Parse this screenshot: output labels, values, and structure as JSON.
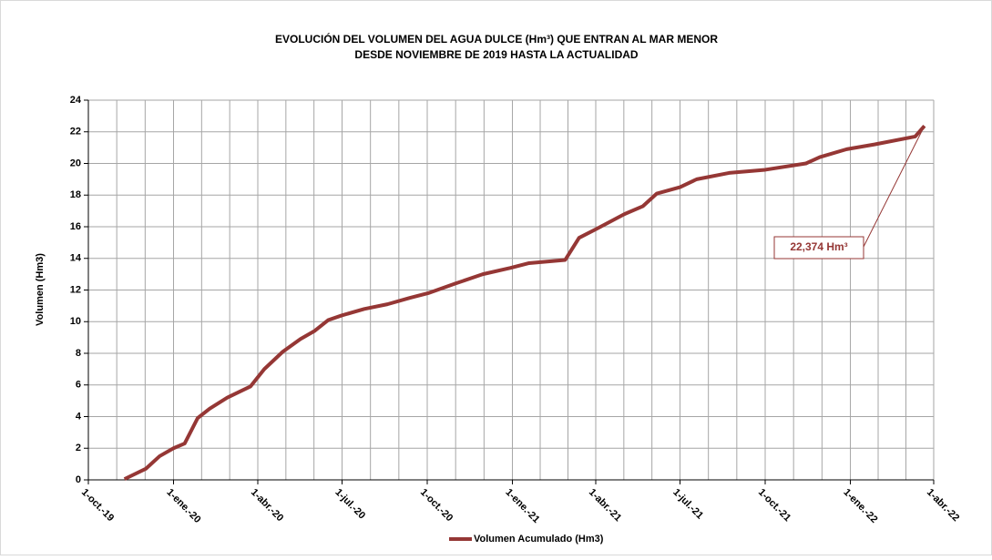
{
  "chart_data": {
    "type": "line",
    "title": [
      "EVOLUCIÓN DEL VOLUMEN DEL AGUA DULCE (Hm³) QUE ENTRAN AL MAR MENOR",
      "DESDE NOVIEMBRE DE 2019 HASTA LA ACTUALIDAD"
    ],
    "ylabel": "Volumen (Hm3)",
    "x": [
      "2019-11-09",
      "2019-12-02",
      "2019-12-17",
      "2020-01-01",
      "2020-01-13",
      "2020-01-27",
      "2020-02-09",
      "2020-02-28",
      "2020-03-24",
      "2020-04-08",
      "2020-04-28",
      "2020-05-17",
      "2020-06-01",
      "2020-06-16",
      "2020-07-01",
      "2020-07-25",
      "2020-08-19",
      "2020-09-12",
      "2020-10-02",
      "2020-10-31",
      "2020-11-30",
      "2020-12-30",
      "2021-01-19",
      "2021-02-27",
      "2021-03-14",
      "2021-04-03",
      "2021-05-02",
      "2021-05-22",
      "2021-06-06",
      "2021-07-01",
      "2021-07-19",
      "2021-08-23",
      "2021-10-01",
      "2021-11-14",
      "2021-11-29",
      "2021-12-28",
      "2022-01-27",
      "2022-03-12",
      "2022-03-22"
    ],
    "series": [
      {
        "name": "Volumen Acumulado (Hm3)",
        "color": "#953735",
        "values": [
          0.05,
          0.7,
          1.5,
          2.0,
          2.3,
          3.9,
          4.5,
          5.2,
          5.9,
          7.0,
          8.1,
          8.9,
          9.4,
          10.1,
          10.4,
          10.8,
          11.1,
          11.5,
          11.8,
          12.4,
          13.0,
          13.4,
          13.7,
          13.9,
          15.3,
          15.9,
          16.8,
          17.3,
          18.1,
          18.5,
          19.0,
          19.4,
          19.6,
          20.0,
          20.4,
          20.9,
          21.2,
          21.7,
          22.374
        ]
      }
    ],
    "annotation": "22,374 Hm³",
    "xlim": [
      "2019-10-01",
      "2022-04-01"
    ],
    "xticks": [
      {
        "value": "2019-10-01",
        "label": "1-oct.-19"
      },
      {
        "value": "2020-01-01",
        "label": "1-ene.-20"
      },
      {
        "value": "2020-04-01",
        "label": "1-abr.-20"
      },
      {
        "value": "2020-07-01",
        "label": "1-jul.-20"
      },
      {
        "value": "2020-10-01",
        "label": "1-oct.-20"
      },
      {
        "value": "2021-01-01",
        "label": "1-ene.-21"
      },
      {
        "value": "2021-04-01",
        "label": "1-abr.-21"
      },
      {
        "value": "2021-07-01",
        "label": "1-jul.-21"
      },
      {
        "value": "2021-10-01",
        "label": "1-oct.-21"
      },
      {
        "value": "2022-01-01",
        "label": "1-ene.-22"
      },
      {
        "value": "2022-04-01",
        "label": "1-abr.-22"
      }
    ],
    "ylim": [
      0,
      24
    ],
    "yticks": [
      0,
      2,
      4,
      6,
      8,
      10,
      12,
      14,
      16,
      18,
      20,
      22,
      24
    ],
    "grid": true,
    "legend": "bottom"
  }
}
